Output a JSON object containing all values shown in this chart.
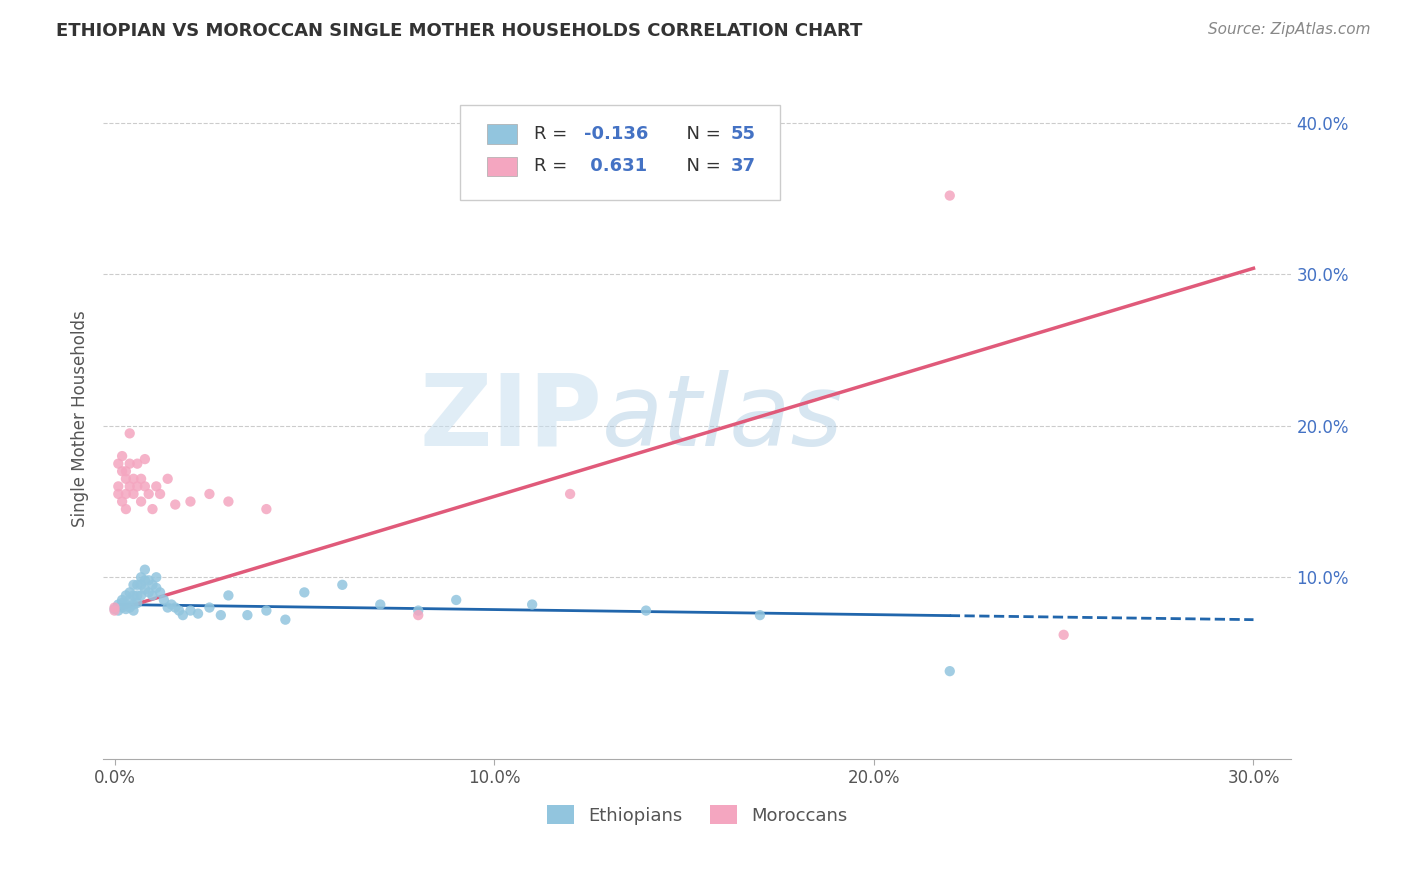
{
  "title": "ETHIOPIAN VS MOROCCAN SINGLE MOTHER HOUSEHOLDS CORRELATION CHART",
  "source": "Source: ZipAtlas.com",
  "xlim": [
    -0.003,
    0.31
  ],
  "ylim": [
    -0.02,
    0.43
  ],
  "ylabel": "Single Mother Households",
  "watermark_zip": "ZIP",
  "watermark_atlas": "atlas",
  "ethiopian_color": "#92c5de",
  "moroccan_color": "#f4a6c0",
  "ethiopian_line_color": "#2166ac",
  "moroccan_line_color": "#e05a7a",
  "r1": "-0.136",
  "n1": "55",
  "r2": "0.631",
  "n2": "37",
  "r_color": "#4472c4",
  "n_color": "#4472c4",
  "ethiopians_label": "Ethiopians",
  "moroccans_label": "Moroccans",
  "eth_x": [
    0.0,
    0.001,
    0.001,
    0.002,
    0.002,
    0.002,
    0.003,
    0.003,
    0.003,
    0.004,
    0.004,
    0.004,
    0.005,
    0.005,
    0.005,
    0.005,
    0.006,
    0.006,
    0.006,
    0.007,
    0.007,
    0.007,
    0.008,
    0.008,
    0.008,
    0.009,
    0.009,
    0.01,
    0.01,
    0.011,
    0.011,
    0.012,
    0.013,
    0.014,
    0.015,
    0.016,
    0.017,
    0.018,
    0.02,
    0.022,
    0.025,
    0.028,
    0.03,
    0.035,
    0.04,
    0.045,
    0.05,
    0.06,
    0.07,
    0.08,
    0.09,
    0.11,
    0.14,
    0.17,
    0.22
  ],
  "eth_y": [
    0.079,
    0.082,
    0.078,
    0.085,
    0.08,
    0.083,
    0.088,
    0.082,
    0.079,
    0.09,
    0.085,
    0.08,
    0.095,
    0.088,
    0.082,
    0.078,
    0.095,
    0.088,
    0.083,
    0.1,
    0.095,
    0.088,
    0.105,
    0.098,
    0.092,
    0.098,
    0.09,
    0.095,
    0.088,
    0.1,
    0.093,
    0.09,
    0.085,
    0.08,
    0.082,
    0.08,
    0.078,
    0.075,
    0.078,
    0.076,
    0.08,
    0.075,
    0.088,
    0.075,
    0.078,
    0.072,
    0.09,
    0.095,
    0.082,
    0.078,
    0.085,
    0.082,
    0.078,
    0.075,
    0.038
  ],
  "mor_x": [
    0.0,
    0.0,
    0.001,
    0.001,
    0.001,
    0.002,
    0.002,
    0.002,
    0.003,
    0.003,
    0.003,
    0.003,
    0.004,
    0.004,
    0.004,
    0.005,
    0.005,
    0.006,
    0.006,
    0.007,
    0.007,
    0.008,
    0.008,
    0.009,
    0.01,
    0.011,
    0.012,
    0.014,
    0.016,
    0.02,
    0.025,
    0.03,
    0.04,
    0.08,
    0.12,
    0.22,
    0.25
  ],
  "mor_y": [
    0.08,
    0.078,
    0.16,
    0.175,
    0.155,
    0.17,
    0.18,
    0.15,
    0.165,
    0.155,
    0.17,
    0.145,
    0.195,
    0.175,
    0.16,
    0.165,
    0.155,
    0.175,
    0.16,
    0.165,
    0.15,
    0.178,
    0.16,
    0.155,
    0.145,
    0.16,
    0.155,
    0.165,
    0.148,
    0.15,
    0.155,
    0.15,
    0.145,
    0.075,
    0.155,
    0.352,
    0.062
  ],
  "eth_line_x": [
    0.0,
    0.3
  ],
  "eth_line_y_start": 0.082,
  "eth_line_y_end": 0.072,
  "mor_line_x": [
    0.0,
    0.3
  ],
  "mor_line_y_start": 0.078,
  "mor_line_y_end": 0.304
}
